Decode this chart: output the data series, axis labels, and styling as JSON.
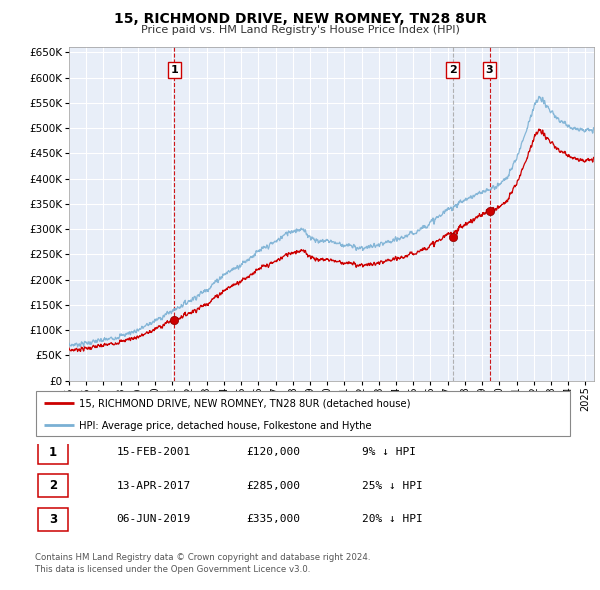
{
  "title": "15, RICHMOND DRIVE, NEW ROMNEY, TN28 8UR",
  "subtitle": "Price paid vs. HM Land Registry's House Price Index (HPI)",
  "legend_line1": "15, RICHMOND DRIVE, NEW ROMNEY, TN28 8UR (detached house)",
  "legend_line2": "HPI: Average price, detached house, Folkestone and Hythe",
  "footnote1": "Contains HM Land Registry data © Crown copyright and database right 2024.",
  "footnote2": "This data is licensed under the Open Government Licence v3.0.",
  "transactions": [
    {
      "num": 1,
      "date": "15-FEB-2001",
      "price": 120000,
      "x_year": 2001.12,
      "hpi_pct": "9% ↓ HPI"
    },
    {
      "num": 2,
      "date": "13-APR-2017",
      "price": 285000,
      "x_year": 2017.28,
      "hpi_pct": "25% ↓ HPI"
    },
    {
      "num": 3,
      "date": "06-JUN-2019",
      "price": 335000,
      "x_year": 2019.43,
      "hpi_pct": "20% ↓ HPI"
    }
  ],
  "vline_color": "#cc0000",
  "dot_color": "#cc0000",
  "prop_line_color": "#cc0000",
  "hpi_line_color": "#7ab0d4",
  "plot_bg": "#e8eef8",
  "grid_color": "#ffffff",
  "ylim": [
    0,
    660000
  ],
  "xlim_start": 1995.0,
  "xlim_end": 2025.5,
  "yticks": [
    0,
    50000,
    100000,
    150000,
    200000,
    250000,
    300000,
    350000,
    400000,
    450000,
    500000,
    550000,
    600000,
    650000
  ],
  "xticks": [
    1995,
    1996,
    1997,
    1998,
    1999,
    2000,
    2001,
    2002,
    2003,
    2004,
    2005,
    2006,
    2007,
    2008,
    2009,
    2010,
    2011,
    2012,
    2013,
    2014,
    2015,
    2016,
    2017,
    2018,
    2019,
    2020,
    2021,
    2022,
    2023,
    2024,
    2025
  ]
}
